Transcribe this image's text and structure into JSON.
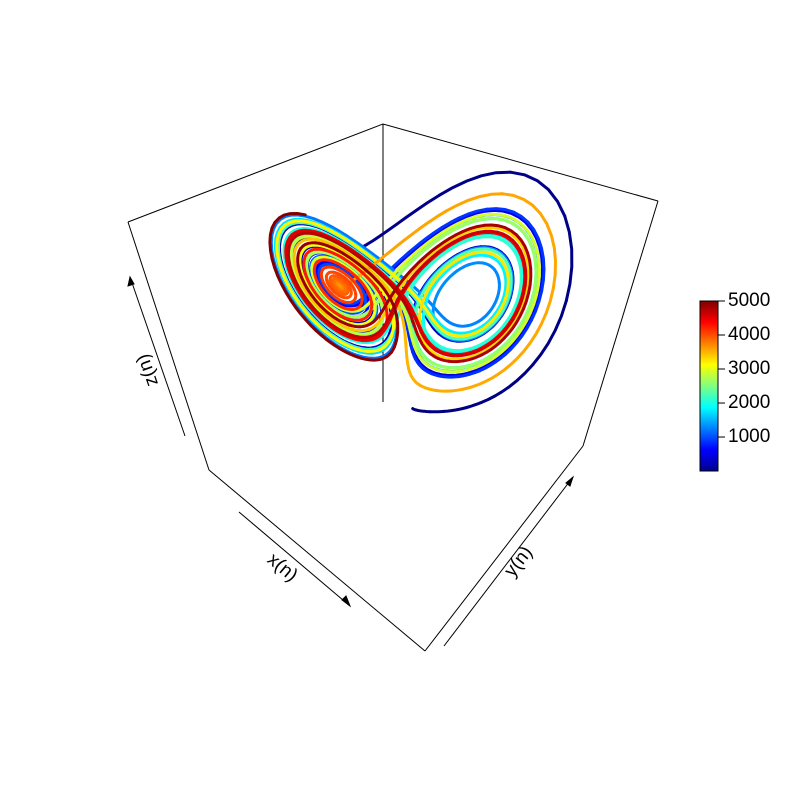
{
  "chart_data": {
    "type": "line",
    "subtype": "3d-trajectory",
    "axes": {
      "x": {
        "label": "x(n)"
      },
      "y": {
        "label": "y(n)"
      },
      "z": {
        "label": "z(n)"
      }
    },
    "color_scale": {
      "palette": "jet",
      "min": 1,
      "max": 5000,
      "ticks": [
        "1000",
        "2000",
        "3000",
        "4000",
        "5000"
      ]
    },
    "series": [
      {
        "points": 5000,
        "color_by": "index",
        "shape": "two-lobe spiral attractor: inner blue spiral on the left lobe, later cyan-green-yellow-orange-red loops alternate between the left and right lobes; dark blue start segment sweeps out to the right"
      }
    ],
    "grid": false,
    "legend_position": "right"
  }
}
